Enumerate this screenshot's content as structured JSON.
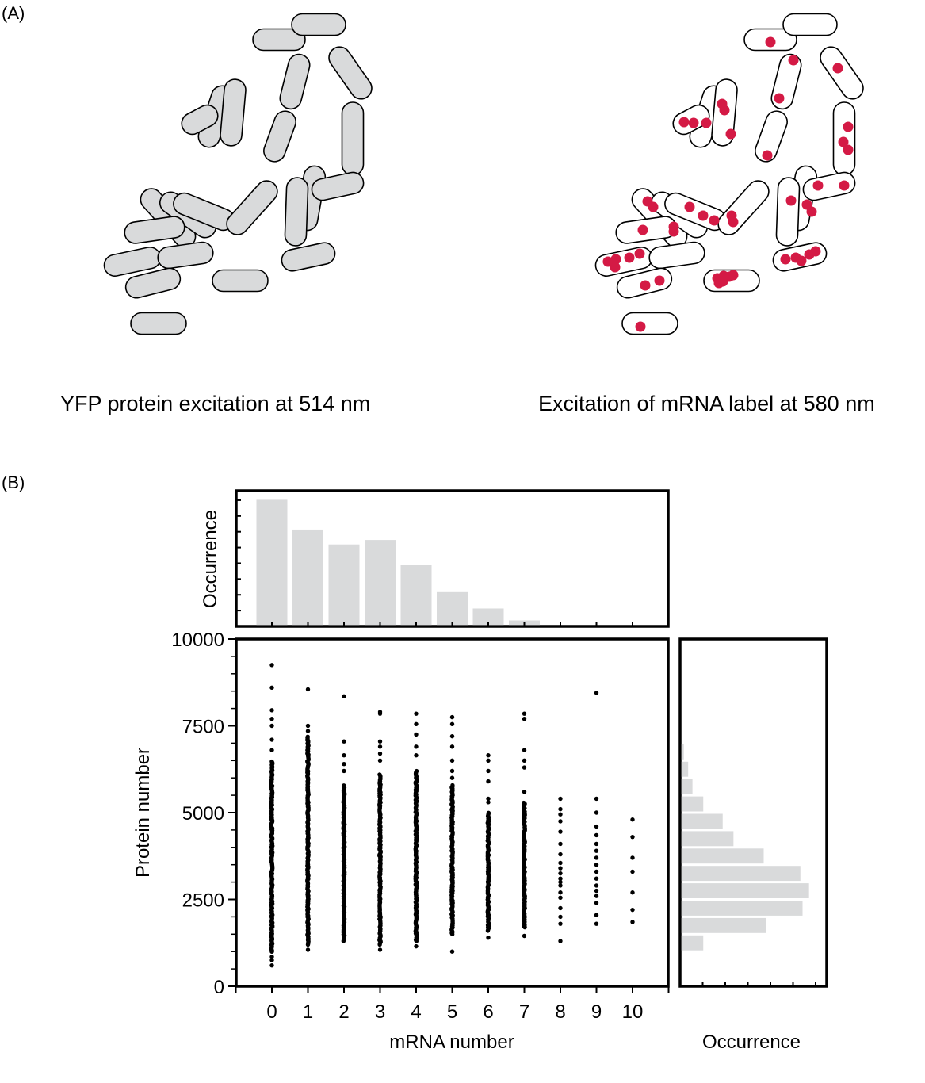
{
  "panel_a": {
    "label": "(A)",
    "left_caption": "YFP protein excitation at 514 nm",
    "right_caption": "Excitation of mRNA label at 580 nm",
    "cell_fill_left": "#d9dadb",
    "cell_fill_right": "#ffffff",
    "spot_color": "#d41a45"
  },
  "panel_b": {
    "label": "(B)",
    "bar_color": "#d9dadb",
    "point_color": "#000000"
  },
  "chart_data": [
    {
      "type": "scatter",
      "xlabel": "mRNA number",
      "ylabel": "Protein number",
      "x_ticks": [
        0,
        1,
        2,
        3,
        4,
        5,
        6,
        7,
        8,
        9,
        10
      ],
      "y_ticks": [
        0,
        2500,
        5000,
        7500,
        10000
      ],
      "xlim": [
        -1,
        11
      ],
      "ylim": [
        0,
        10000
      ],
      "columns": [
        {
          "x": 0,
          "band": [
            1000,
            6500
          ],
          "outliers": [
            9250,
            8600,
            7950,
            7700,
            7500,
            7100,
            6800,
            1000,
            850,
            750,
            600
          ]
        },
        {
          "x": 1,
          "band": [
            1200,
            7200
          ],
          "outliers": [
            8550,
            7500,
            7350,
            1050
          ]
        },
        {
          "x": 2,
          "band": [
            1300,
            5800
          ],
          "outliers": [
            8350,
            7050,
            6650,
            6400,
            6200
          ]
        },
        {
          "x": 3,
          "band": [
            1200,
            6100
          ],
          "outliers": [
            7900,
            7850,
            7050,
            6900,
            6700,
            6500,
            1050
          ]
        },
        {
          "x": 4,
          "band": [
            1300,
            6200
          ],
          "outliers": [
            7850,
            7550,
            7250,
            6900,
            6650,
            1150
          ]
        },
        {
          "x": 5,
          "band": [
            1500,
            5800
          ],
          "outliers": [
            7750,
            7550,
            7200,
            6900,
            6500,
            6200,
            6000,
            1000
          ]
        },
        {
          "x": 6,
          "band": [
            1600,
            5000
          ],
          "outliers": [
            6650,
            6500,
            6200,
            5900,
            5400,
            5300,
            1400
          ]
        },
        {
          "x": 7,
          "band": [
            1700,
            5300
          ],
          "outliers": [
            7850,
            7700,
            6800,
            6500,
            6300,
            5600,
            1450
          ]
        },
        {
          "x": 8,
          "points": [
            5400,
            5100,
            4950,
            4750,
            4450,
            4100,
            3800,
            3550,
            3400,
            3250,
            3100,
            3000,
            2900,
            2700,
            2550,
            2250,
            2000,
            1800,
            1300
          ]
        },
        {
          "x": 9,
          "points": [
            8450,
            5400,
            5000,
            4600,
            4350,
            4100,
            3900,
            3700,
            3500,
            3300,
            3100,
            2900,
            2750,
            2600,
            2400,
            2050,
            1800
          ]
        },
        {
          "x": 10,
          "points": [
            4800,
            4300,
            3700,
            3300,
            2700,
            2200,
            1850
          ]
        }
      ]
    },
    {
      "type": "bar",
      "orientation": "vertical",
      "ylabel": "Occurrence",
      "categories": [
        0,
        1,
        2,
        3,
        4,
        5,
        6,
        7,
        8,
        9,
        10
      ],
      "values": [
        8.5,
        6.5,
        5.5,
        5.8,
        4.1,
        2.3,
        1.2,
        0.4,
        0,
        0,
        0
      ],
      "ylim": [
        0,
        9
      ]
    },
    {
      "type": "bar",
      "orientation": "horizontal",
      "xlabel": "Occurrence",
      "bins": [
        {
          "low": 1000,
          "high": 1500,
          "value": 1
        },
        {
          "low": 1500,
          "high": 2000,
          "value": 3.9
        },
        {
          "low": 2000,
          "high": 2500,
          "value": 5.6
        },
        {
          "low": 2500,
          "high": 3000,
          "value": 5.9
        },
        {
          "low": 3000,
          "high": 3500,
          "value": 5.5
        },
        {
          "low": 3500,
          "high": 4000,
          "value": 3.8
        },
        {
          "low": 4000,
          "high": 4500,
          "value": 2.4
        },
        {
          "low": 4500,
          "high": 5000,
          "value": 1.9
        },
        {
          "low": 5000,
          "high": 5500,
          "value": 1.0
        },
        {
          "low": 5500,
          "high": 6000,
          "value": 0.5
        },
        {
          "low": 6000,
          "high": 6500,
          "value": 0.3
        },
        {
          "low": 6500,
          "high": 7000,
          "value": 0.1
        }
      ],
      "xlim": [
        0,
        6.5
      ]
    }
  ]
}
